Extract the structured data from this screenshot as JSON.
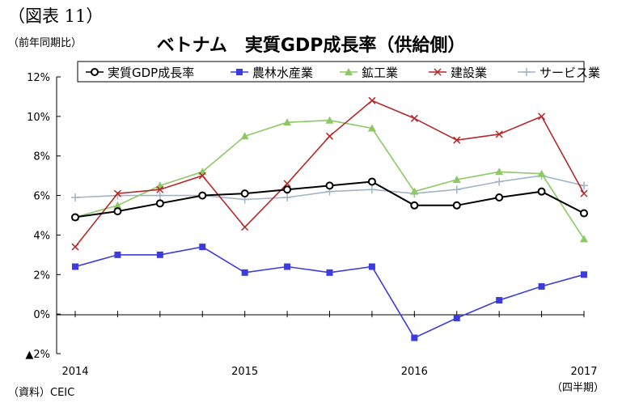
{
  "header": {
    "figure_label": "（図表 11）",
    "unit_label": "（前年同期比）"
  },
  "footer": {
    "source": "（資料）CEIC",
    "x_unit": "（四半期）"
  },
  "chart_data": {
    "type": "line",
    "title": "ベトナム　実質GDP成長率（供給側）",
    "xlabel": "",
    "ylabel": "",
    "x_tick_labels": [
      "2014",
      "2015",
      "2016",
      "2017"
    ],
    "y_tick_labels": [
      "12%",
      "10%",
      "8%",
      "6%",
      "4%",
      "2%",
      "0%",
      "▲2%"
    ],
    "y_ticks": [
      12,
      10,
      8,
      6,
      4,
      2,
      0,
      -2
    ],
    "ylim": [
      -2,
      12
    ],
    "x_range": [
      0,
      12
    ],
    "x_year_positions": [
      0,
      4,
      8,
      12
    ],
    "grid": false,
    "legend_position": "top",
    "series": [
      {
        "name": "実質GDP成長率",
        "color": "#000000",
        "marker": "circle-open",
        "values": [
          4.9,
          5.2,
          5.6,
          6.0,
          6.1,
          6.3,
          6.5,
          6.7,
          5.5,
          5.5,
          5.9,
          6.2,
          5.1
        ]
      },
      {
        "name": "農林水産業",
        "color": "#3c3cdc",
        "marker": "square",
        "values": [
          2.4,
          3.0,
          3.0,
          3.4,
          2.1,
          2.4,
          2.1,
          2.4,
          -1.2,
          -0.2,
          0.7,
          1.4,
          2.0
        ]
      },
      {
        "name": "鉱工業",
        "color": "#8cc864",
        "marker": "triangle",
        "values": [
          4.9,
          5.5,
          6.5,
          7.2,
          9.0,
          9.7,
          9.8,
          9.4,
          6.2,
          6.8,
          7.2,
          7.1,
          3.8
        ]
      },
      {
        "name": "建設業",
        "color": "#b42828",
        "marker": "x",
        "values": [
          3.4,
          6.1,
          6.3,
          7.0,
          4.4,
          6.6,
          9.0,
          10.8,
          9.9,
          8.8,
          9.1,
          10.0,
          6.1
        ]
      },
      {
        "name": "サービス業",
        "color": "#a0b4c8",
        "marker": "plus",
        "values": [
          5.9,
          6.0,
          6.0,
          6.0,
          5.8,
          5.9,
          6.2,
          6.3,
          6.1,
          6.3,
          6.7,
          7.0,
          6.5
        ]
      }
    ]
  }
}
